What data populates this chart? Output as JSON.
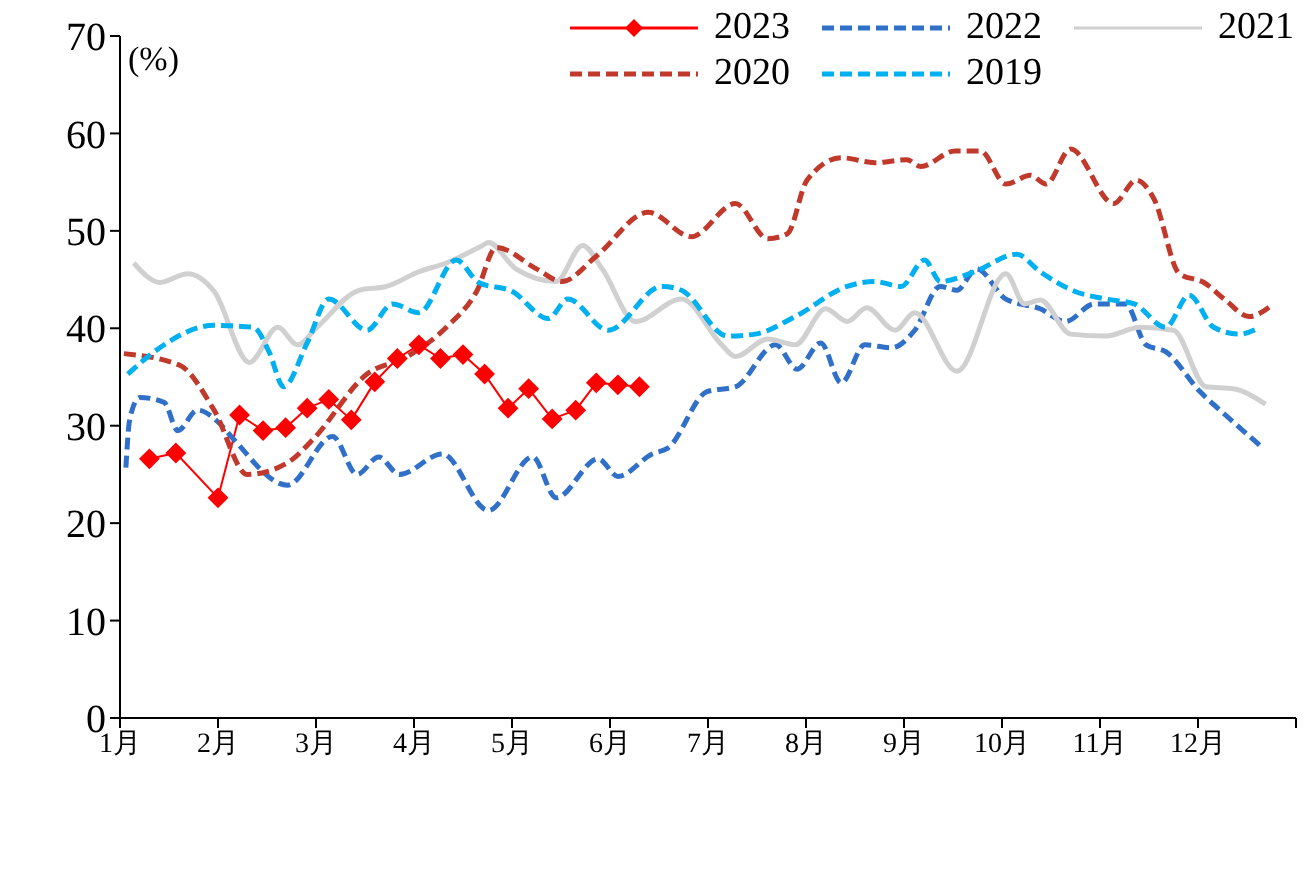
{
  "chart_data": {
    "type": "line",
    "ylabel": "(%)",
    "xlim": [
      1,
      13
    ],
    "ylim": [
      0,
      70
    ],
    "yticks": [
      0,
      10,
      20,
      30,
      40,
      50,
      60,
      70
    ],
    "xticks": [
      {
        "value": 1,
        "label": "1月"
      },
      {
        "value": 2,
        "label": "2月"
      },
      {
        "value": 3,
        "label": "3月"
      },
      {
        "value": 4,
        "label": "4月"
      },
      {
        "value": 5,
        "label": "5月"
      },
      {
        "value": 6,
        "label": "6月"
      },
      {
        "value": 7,
        "label": "7月"
      },
      {
        "value": 8,
        "label": "8月"
      },
      {
        "value": 9,
        "label": "9月"
      },
      {
        "value": 10,
        "label": "10月"
      },
      {
        "value": 11,
        "label": "11月"
      },
      {
        "value": 12,
        "label": "12月"
      },
      {
        "value": 13,
        "label": null
      }
    ],
    "legend": "top right",
    "series": [
      {
        "name": "2023",
        "color": "#ff0000",
        "marker": "diamond",
        "line_style": "solid",
        "x": [
          1.3,
          1.57,
          2.0,
          2.22,
          2.46,
          2.69,
          2.91,
          3.13,
          3.36,
          3.6,
          3.83,
          4.05,
          4.27,
          4.5,
          4.72,
          4.96,
          5.17,
          5.41,
          5.65,
          5.86,
          6.08,
          6.3
        ],
        "values": [
          26.6,
          27.2,
          22.6,
          31.1,
          29.5,
          29.8,
          31.8,
          32.7,
          30.6,
          34.5,
          36.9,
          38.3,
          36.9,
          37.3,
          35.3,
          31.8,
          33.8,
          30.7,
          31.6,
          34.4,
          34.2,
          34.0
        ]
      },
      {
        "name": "2022",
        "color": "#3070c8",
        "marker": "none",
        "line_style": "dashed",
        "x": [
          1.06,
          1.1,
          1.2,
          1.45,
          1.59,
          1.79,
          2.02,
          2.16,
          2.71,
          3.17,
          3.42,
          3.64,
          3.85,
          4.29,
          4.76,
          5.21,
          5.45,
          5.88,
          6.08,
          6.43,
          6.59,
          6.99,
          7.28,
          7.69,
          7.91,
          8.15,
          8.36,
          8.6,
          8.87,
          9.11,
          9.37,
          9.54,
          9.74,
          10.04,
          10.39,
          10.65,
          10.94,
          11.26,
          11.47,
          11.67,
          12.02,
          12.28,
          12.63
        ],
        "values": [
          25.7,
          30.7,
          32.9,
          32.4,
          29.5,
          31.6,
          30.2,
          28.6,
          23.9,
          28.9,
          25.0,
          26.8,
          25.0,
          27.1,
          21.3,
          26.8,
          22.6,
          26.6,
          24.8,
          27.1,
          27.7,
          33.5,
          34.0,
          38.3,
          35.8,
          38.5,
          34.4,
          38.3,
          38.0,
          39.8,
          44.3,
          43.9,
          46.1,
          43.0,
          42.0,
          40.7,
          42.5,
          42.5,
          38.3,
          37.6,
          33.5,
          31.1,
          28.0
        ]
      },
      {
        "name": "2021",
        "color": "#d0d0d0",
        "marker": "none",
        "line_style": "solid",
        "x": [
          1.14,
          1.41,
          1.69,
          1.96,
          2.32,
          2.61,
          2.81,
          3.01,
          3.44,
          3.72,
          4.05,
          4.33,
          4.7,
          4.76,
          5.04,
          5.45,
          5.72,
          5.92,
          6.26,
          6.73,
          7.14,
          7.28,
          7.61,
          7.89,
          8.2,
          8.42,
          8.62,
          8.91,
          9.11,
          9.54,
          10.04,
          10.23,
          10.39,
          10.7,
          11.06,
          11.41,
          11.75,
          12.08,
          12.36,
          12.69
        ],
        "values": [
          46.7,
          44.7,
          45.6,
          43.8,
          36.5,
          40.1,
          38.3,
          40.1,
          43.9,
          44.3,
          45.8,
          46.7,
          48.5,
          48.8,
          46.1,
          44.8,
          48.5,
          46.1,
          40.7,
          43.0,
          38.3,
          37.1,
          38.9,
          38.3,
          42.0,
          40.7,
          42.1,
          39.8,
          41.6,
          35.6,
          45.6,
          42.5,
          42.9,
          39.4,
          39.2,
          40.1,
          39.8,
          34.0,
          33.8,
          32.2
        ]
      },
      {
        "name": "2020",
        "color": "#c0392b",
        "marker": "none",
        "line_style": "dashed",
        "x": [
          1.04,
          1.61,
          1.96,
          2.3,
          2.71,
          2.97,
          3.52,
          3.93,
          4.33,
          4.64,
          4.84,
          5.25,
          5.51,
          5.86,
          6.39,
          6.83,
          7.28,
          7.61,
          7.81,
          8.01,
          8.36,
          8.7,
          9.03,
          9.17,
          9.52,
          9.78,
          10.04,
          10.29,
          10.45,
          10.7,
          11.14,
          11.37,
          11.55,
          11.81,
          12.06,
          12.28,
          12.52,
          12.77
        ],
        "values": [
          37.4,
          36.2,
          31.6,
          25.0,
          26.2,
          28.6,
          35.3,
          37.1,
          40.1,
          43.8,
          48.3,
          46.1,
          44.8,
          47.4,
          51.9,
          49.4,
          52.8,
          49.2,
          49.7,
          55.2,
          57.5,
          57.0,
          57.3,
          56.6,
          58.2,
          58.2,
          54.8,
          55.7,
          54.8,
          58.4,
          52.8,
          55.2,
          53.3,
          45.6,
          44.7,
          42.9,
          41.2,
          42.5
        ]
      },
      {
        "name": "2019",
        "color": "#00b0f0",
        "marker": "none",
        "line_style": "dashed",
        "x": [
          1.08,
          1.35,
          1.96,
          2.36,
          2.52,
          2.67,
          2.91,
          3.13,
          3.52,
          3.78,
          4.05,
          4.43,
          4.66,
          5.0,
          5.37,
          5.57,
          5.98,
          6.53,
          6.73,
          7.2,
          7.48,
          7.89,
          8.42,
          8.7,
          8.97,
          9.21,
          9.37,
          9.72,
          10.15,
          10.39,
          10.74,
          11.06,
          11.35,
          11.67,
          11.91,
          12.16,
          12.42,
          12.63
        ],
        "values": [
          35.3,
          37.6,
          40.3,
          40.1,
          37.6,
          34.0,
          38.5,
          43.0,
          39.8,
          42.5,
          41.6,
          47.0,
          44.7,
          43.8,
          41.0,
          43.0,
          39.8,
          44.3,
          43.9,
          39.2,
          39.4,
          41.2,
          44.3,
          44.8,
          44.3,
          47.0,
          44.8,
          45.8,
          47.6,
          45.8,
          43.8,
          43.0,
          42.5,
          40.1,
          43.4,
          40.1,
          39.4,
          40.1
        ]
      }
    ]
  }
}
